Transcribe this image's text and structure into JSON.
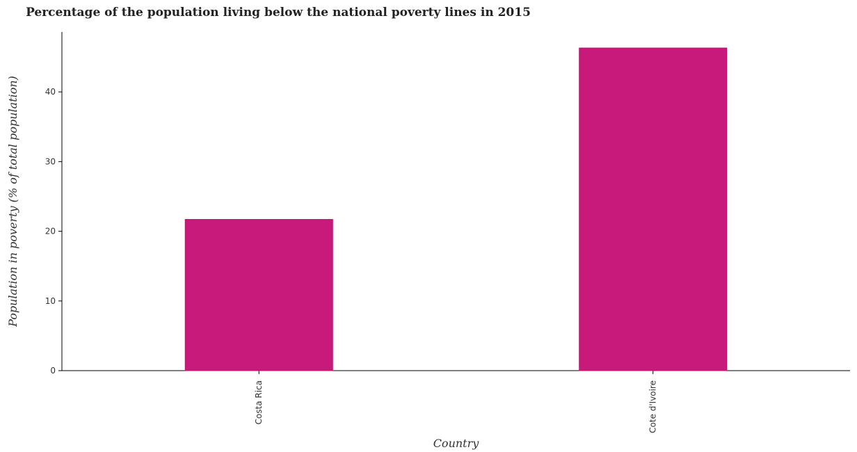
{
  "chart_data": {
    "type": "bar",
    "title": "Percentage of the population living below the national poverty lines in 2015",
    "xlabel": "Country",
    "ylabel": "Population in poverty (% of total population)",
    "categories": [
      "Costa Rica",
      "Cote d'Ivoire"
    ],
    "values": [
      21.7,
      46.3
    ],
    "ylim": [
      0,
      48.6
    ],
    "yticks": [
      0,
      10,
      20,
      30,
      40
    ],
    "grid": false,
    "legend": "none",
    "bar_color": "#c71a7a",
    "bar_edge_color": "#b41068"
  }
}
